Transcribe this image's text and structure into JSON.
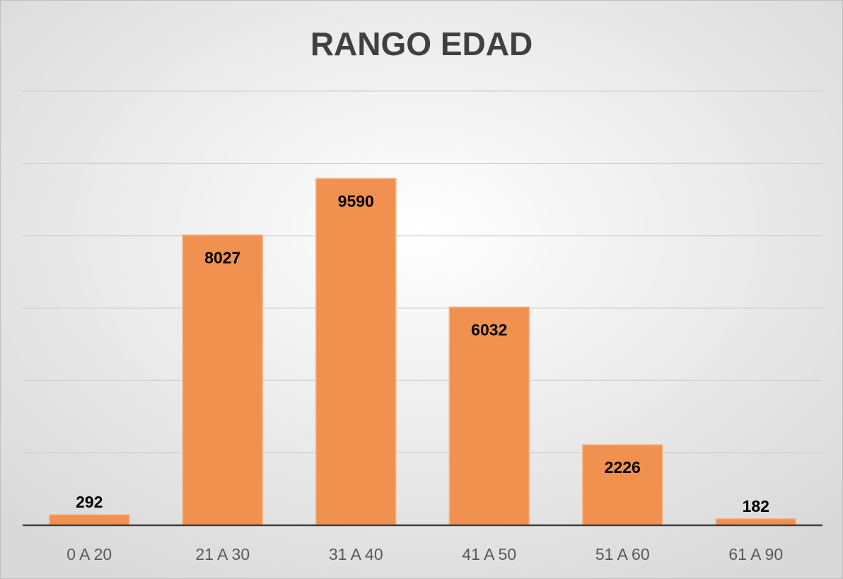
{
  "chart_data": {
    "type": "bar",
    "title": "RANGO EDAD",
    "categories": [
      "0 A 20",
      "21 A 30",
      "31 A 40",
      "41 A 50",
      "51 A 60",
      "61 A 90"
    ],
    "values": [
      292,
      8027,
      9590,
      6032,
      2226,
      182
    ],
    "color": "#f0914f",
    "ylim": [
      0,
      12000
    ],
    "yticks": [
      0,
      2000,
      4000,
      6000,
      8000,
      10000,
      12000
    ],
    "grid": true
  }
}
